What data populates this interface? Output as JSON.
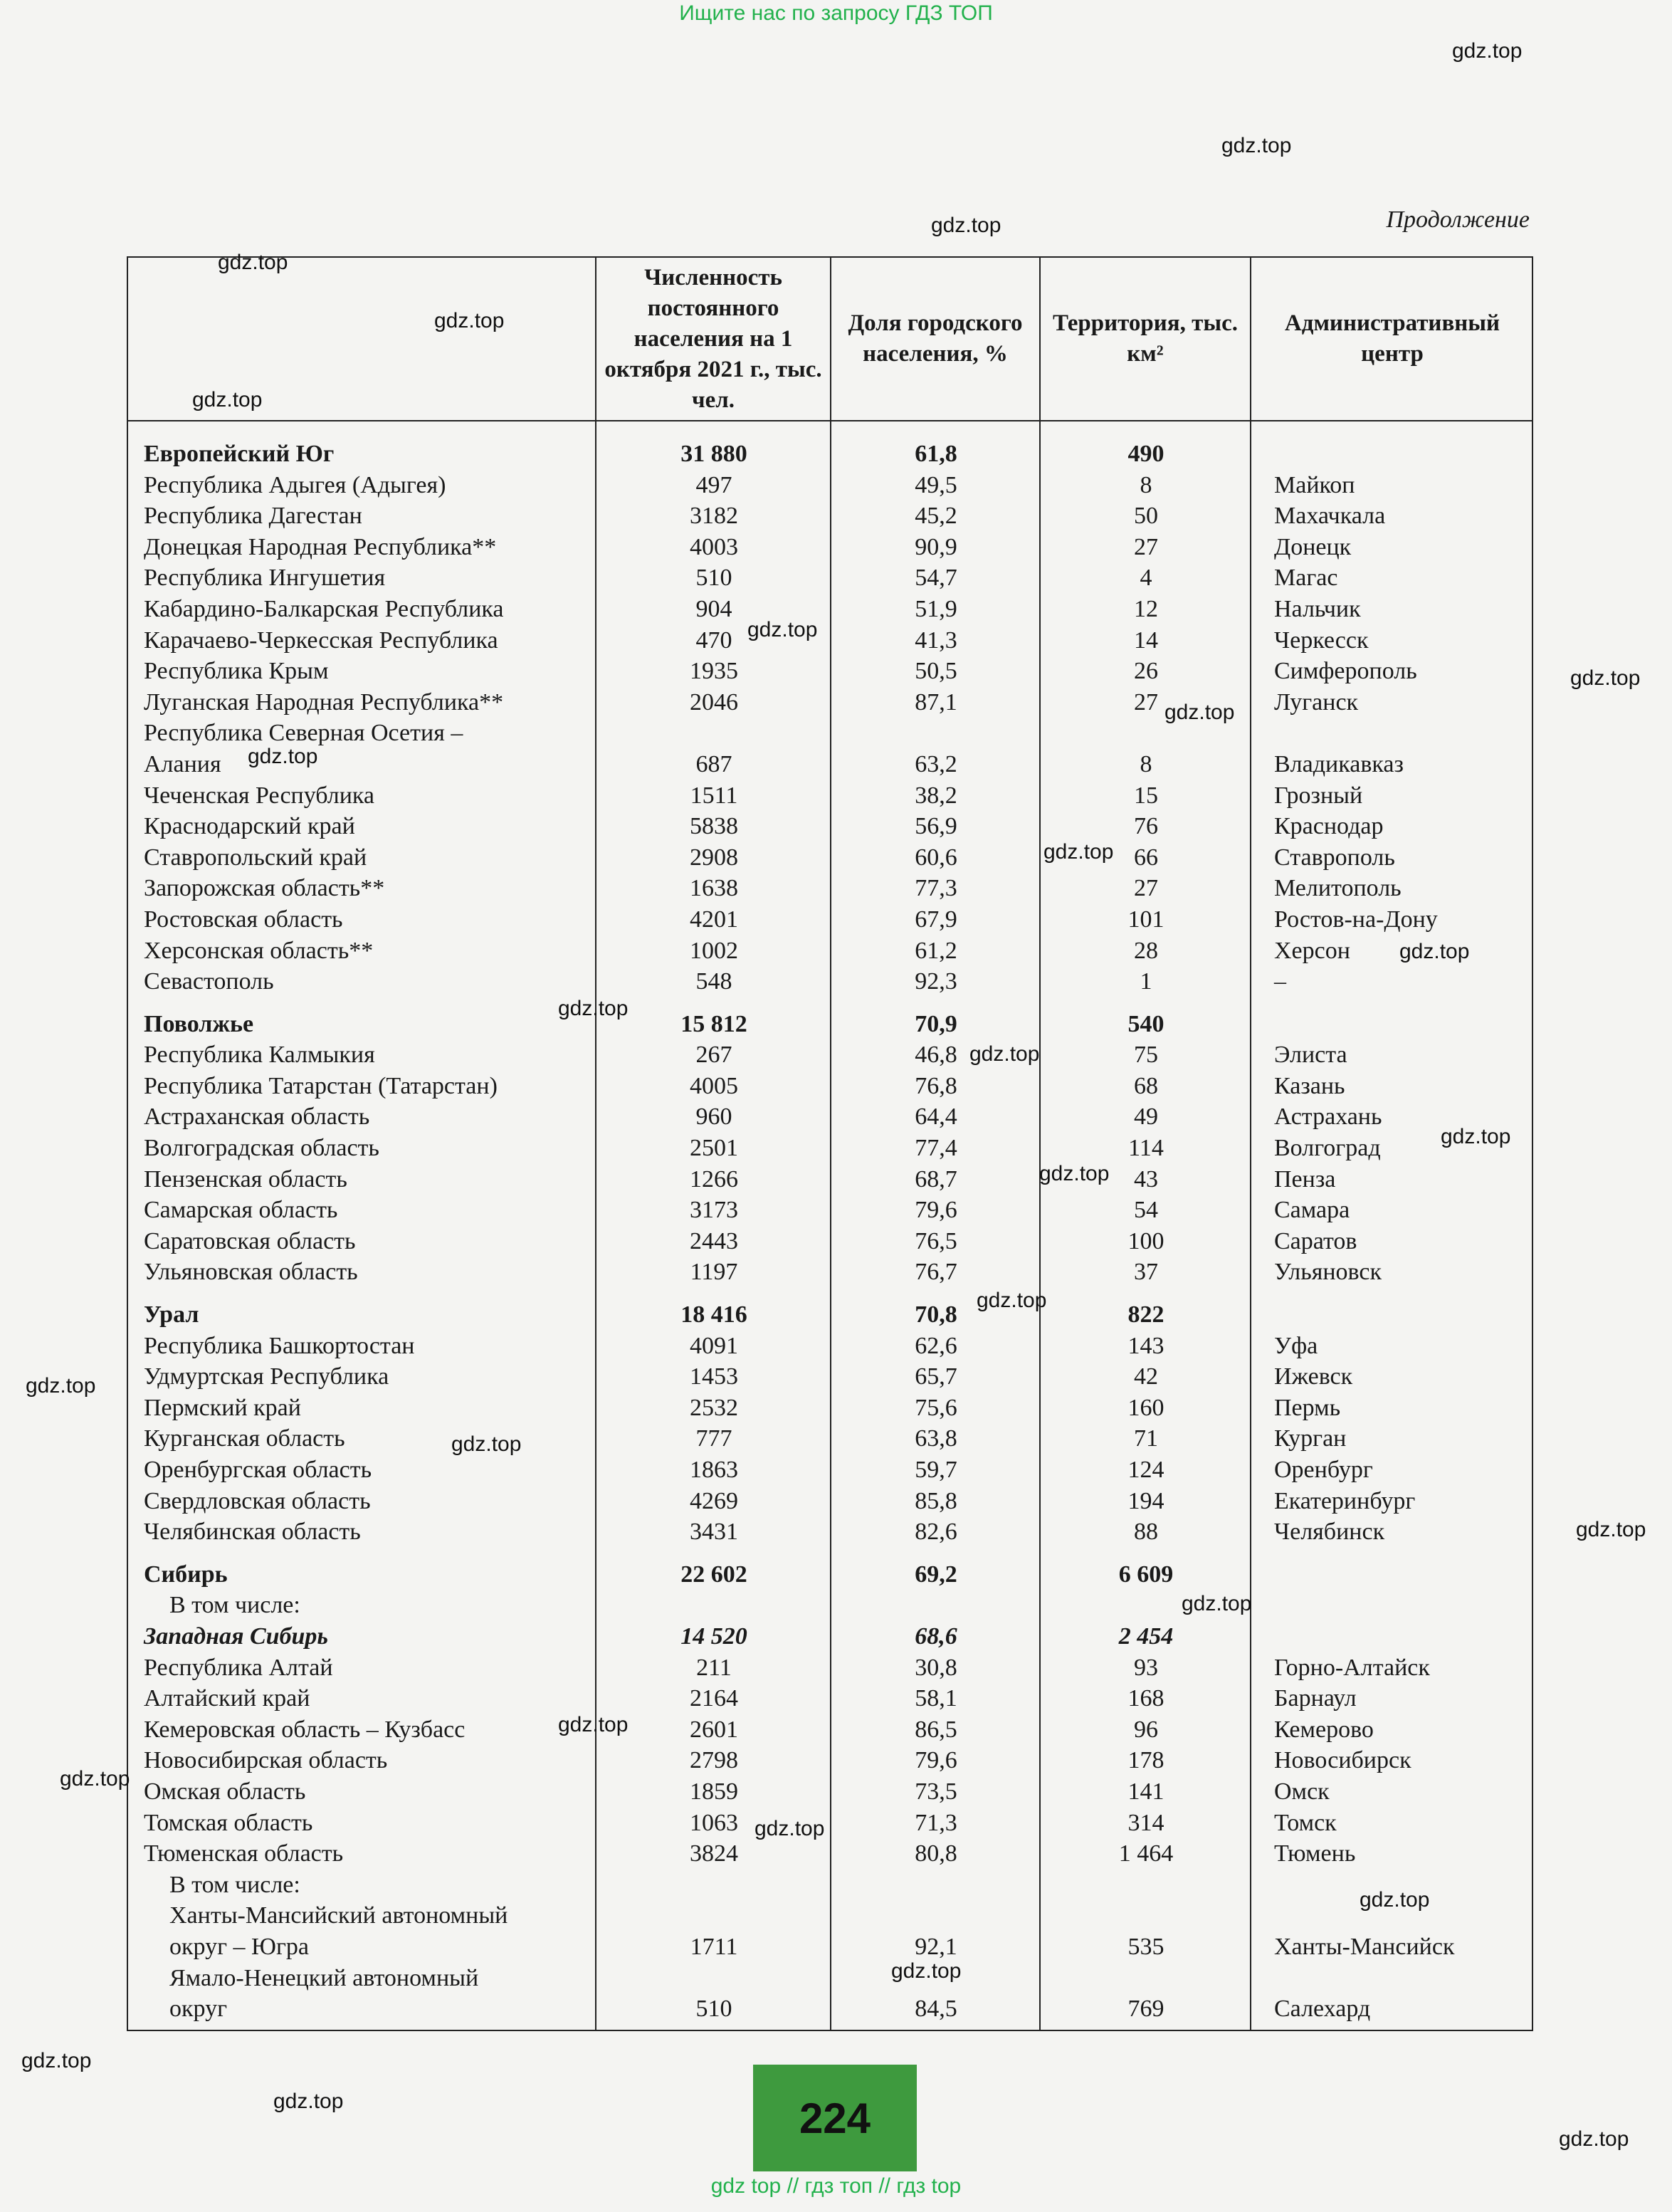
{
  "banner": "Ищите нас по запросу ГДЗ ТОП",
  "continuation": "Продолжение",
  "headers": [
    "",
    "Численность постоянного населения на 1 октября 2021 г., тыс. чел.",
    "Доля городского населения, %",
    "Территория, тыс. км²",
    "Административный центр"
  ],
  "rows": [
    {
      "t": "grp",
      "c": [
        "Европейский Юг",
        "31 880",
        "61,8",
        "490",
        ""
      ]
    },
    {
      "c": [
        "Республика Адыгея (Адыгея)",
        "497",
        "49,5",
        "8",
        "Майкоп"
      ]
    },
    {
      "c": [
        "Республика Дагестан",
        "3182",
        "45,2",
        "50",
        "Махачкала"
      ]
    },
    {
      "c": [
        "Донецкая Народная Республика**",
        "4003",
        "90,9",
        "27",
        "Донецк"
      ]
    },
    {
      "c": [
        "Республика Ингушетия",
        "510",
        "54,7",
        "4",
        "Магас"
      ]
    },
    {
      "c": [
        "Кабардино-Балкарская Республика",
        "904",
        "51,9",
        "12",
        "Нальчик"
      ]
    },
    {
      "c": [
        "Карачаево-Черкесская Республика",
        "470",
        "41,3",
        "14",
        "Черкесск"
      ]
    },
    {
      "c": [
        "Республика Крым",
        "1935",
        "50,5",
        "26",
        "Симферополь"
      ]
    },
    {
      "c": [
        "Луганская Народная Республика**",
        "2046",
        "87,1",
        "27",
        "Луганск"
      ]
    },
    {
      "c": [
        "Республика Северная Осетия –",
        "",
        "",
        "",
        ""
      ]
    },
    {
      "c": [
        "Алания",
        "687",
        "63,2",
        "8",
        "Владикавказ"
      ]
    },
    {
      "c": [
        "Чеченская Республика",
        "1511",
        "38,2",
        "15",
        "Грозный"
      ]
    },
    {
      "c": [
        "Краснодарский край",
        "5838",
        "56,9",
        "76",
        "Краснодар"
      ]
    },
    {
      "c": [
        "Ставропольский край",
        "2908",
        "60,6",
        "66",
        "Ставрополь"
      ]
    },
    {
      "c": [
        "Запорожская область**",
        "1638",
        "77,3",
        "27",
        "Мелитополь"
      ]
    },
    {
      "c": [
        "Ростовская область",
        "4201",
        "67,9",
        "101",
        "Ростов-на-Дону"
      ]
    },
    {
      "c": [
        "Херсонская область**",
        "1002",
        "61,2",
        "28",
        "Херсон"
      ]
    },
    {
      "c": [
        "Севастополь",
        "548",
        "92,3",
        "1",
        "–"
      ]
    },
    {
      "t": "grp",
      "c": [
        "Поволжье",
        "15 812",
        "70,9",
        "540",
        ""
      ]
    },
    {
      "c": [
        "Республика Калмыкия",
        "267",
        "46,8",
        "75",
        "Элиста"
      ]
    },
    {
      "c": [
        "Республика Татарстан (Татарстан)",
        "4005",
        "76,8",
        "68",
        "Казань"
      ]
    },
    {
      "c": [
        "Астраханская область",
        "960",
        "64,4",
        "49",
        "Астрахань"
      ]
    },
    {
      "c": [
        "Волгоградская область",
        "2501",
        "77,4",
        "114",
        "Волгоград"
      ]
    },
    {
      "c": [
        "Пензенская область",
        "1266",
        "68,7",
        "43",
        "Пенза"
      ]
    },
    {
      "c": [
        "Самарская область",
        "3173",
        "79,6",
        "54",
        "Самара"
      ]
    },
    {
      "c": [
        "Саратовская область",
        "2443",
        "76,5",
        "100",
        "Саратов"
      ]
    },
    {
      "c": [
        "Ульяновская область",
        "1197",
        "76,7",
        "37",
        "Ульяновск"
      ]
    },
    {
      "t": "grp",
      "c": [
        "Урал",
        "18 416",
        "70,8",
        "822",
        ""
      ]
    },
    {
      "c": [
        "Республика Башкортостан",
        "4091",
        "62,6",
        "143",
        "Уфа"
      ]
    },
    {
      "c": [
        "Удмуртская Республика",
        "1453",
        "65,7",
        "42",
        "Ижевск"
      ]
    },
    {
      "c": [
        "Пермский край",
        "2532",
        "75,6",
        "160",
        "Пермь"
      ]
    },
    {
      "c": [
        "Курганская область",
        "777",
        "63,8",
        "71",
        "Курган"
      ]
    },
    {
      "c": [
        "Оренбургская область",
        "1863",
        "59,7",
        "124",
        "Оренбург"
      ]
    },
    {
      "c": [
        "Свердловская область",
        "4269",
        "85,8",
        "194",
        "Екатеринбург"
      ]
    },
    {
      "c": [
        "Челябинская область",
        "3431",
        "82,6",
        "88",
        "Челябинск"
      ]
    },
    {
      "t": "grp",
      "c": [
        "Сибирь",
        "22 602",
        "69,2",
        "6 609",
        ""
      ]
    },
    {
      "t": "ind",
      "c": [
        "В том числе:",
        "",
        "",
        "",
        ""
      ]
    },
    {
      "t": "it",
      "c": [
        "Западная Сибирь",
        "14 520",
        "68,6",
        "2 454",
        ""
      ]
    },
    {
      "c": [
        "Республика Алтай",
        "211",
        "30,8",
        "93",
        "Горно-Алтайск"
      ]
    },
    {
      "c": [
        "Алтайский край",
        "2164",
        "58,1",
        "168",
        "Барнаул"
      ]
    },
    {
      "c": [
        "Кемеровская область – Кузбасс",
        "2601",
        "86,5",
        "96",
        "Кемерово"
      ]
    },
    {
      "c": [
        "Новосибирская область",
        "2798",
        "79,6",
        "178",
        "Новосибирск"
      ]
    },
    {
      "c": [
        "Омская область",
        "1859",
        "73,5",
        "141",
        "Омск"
      ]
    },
    {
      "c": [
        "Томская область",
        "1063",
        "71,3",
        "314",
        "Томск"
      ]
    },
    {
      "c": [
        "Тюменская область",
        "3824",
        "80,8",
        "1 464",
        "Тюмень"
      ]
    },
    {
      "t": "ind",
      "c": [
        "В том числе:",
        "",
        "",
        "",
        ""
      ]
    },
    {
      "t": "ind",
      "c": [
        "Ханты-Мансийский автономный",
        "",
        "",
        "",
        ""
      ]
    },
    {
      "t": "ind",
      "c": [
        "округ – Югра",
        "1711",
        "92,1",
        "535",
        "Ханты-Мансийск"
      ]
    },
    {
      "t": "ind",
      "c": [
        "Ямало-Ненецкий автономный",
        "",
        "",
        "",
        ""
      ]
    },
    {
      "t": "ind",
      "c": [
        "округ",
        "510",
        "84,5",
        "769",
        "Салехард"
      ]
    }
  ],
  "page_number": "224",
  "footer": "gdz top  //  гдз топ  //  гдз top",
  "watermark": "gdz.top"
}
